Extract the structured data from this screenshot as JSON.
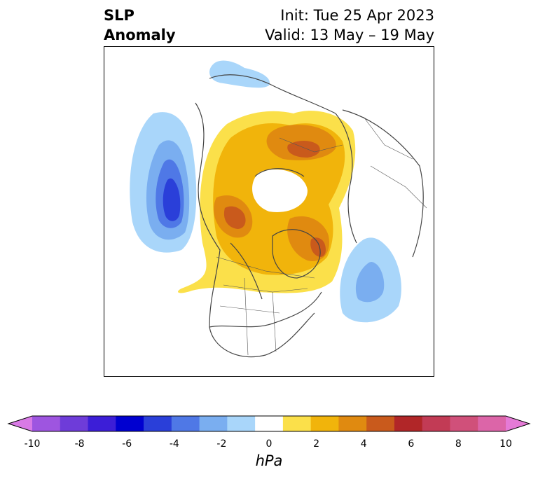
{
  "title": {
    "line1": "SLP",
    "line2": "Anomaly",
    "init": "Init: Tue 25 Apr 2023",
    "valid": "Valid: 13 May – 19 May"
  },
  "colorbar": {
    "units": "hPa",
    "ticks": [
      "-10",
      "-8",
      "-6",
      "-4",
      "-2",
      "0",
      "2",
      "4",
      "6",
      "8",
      "10"
    ],
    "colors": [
      "#d97ae6",
      "#9e55e0",
      "#6e3cd9",
      "#3c1ed7",
      "#0000d0",
      "#2a3fd9",
      "#4f78e6",
      "#7aaef0",
      "#a9d6fa",
      "#ffffff",
      "#fbe04a",
      "#f1b40b",
      "#e08a10",
      "#c95a1c",
      "#b12628",
      "#c23b55",
      "#d0507a",
      "#dc65a8",
      "#e57ad6"
    ],
    "extend": "both"
  },
  "map": {
    "projection": "north-polar-stereographic",
    "field": "SLP anomaly"
  }
}
